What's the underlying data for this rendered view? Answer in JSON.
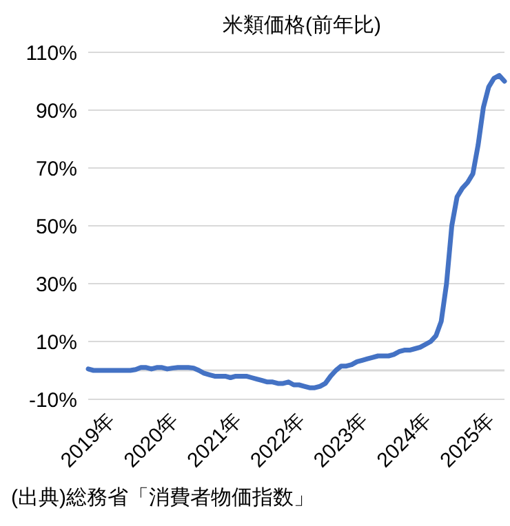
{
  "chart_data": {
    "type": "line",
    "title": "米類価格(前年比)",
    "annotations": [
      "(出典)総務省「消費者物価指数」"
    ],
    "categories": [
      "2019年",
      null,
      null,
      null,
      null,
      null,
      null,
      null,
      null,
      null,
      null,
      null,
      "2020年",
      null,
      null,
      null,
      null,
      null,
      null,
      null,
      null,
      null,
      null,
      null,
      "2021年",
      null,
      null,
      null,
      null,
      null,
      null,
      null,
      null,
      null,
      null,
      null,
      "2022年",
      null,
      null,
      null,
      null,
      null,
      null,
      null,
      null,
      null,
      null,
      null,
      "2023年",
      null,
      null,
      null,
      null,
      null,
      null,
      null,
      null,
      null,
      null,
      null,
      "2024年",
      null,
      null,
      null,
      null,
      null,
      null,
      null,
      null,
      null,
      null,
      null,
      "2025年",
      null,
      null,
      null,
      null,
      null,
      null,
      null
    ],
    "series": [
      {
        "color": "#4472c4",
        "values": [
          0.5,
          0,
          0,
          0,
          0,
          0,
          0,
          0,
          0,
          0.3,
          1,
          1,
          0.5,
          1,
          1,
          0.5,
          0.8,
          1,
          1,
          1,
          0.8,
          0,
          -1,
          -1.5,
          -2,
          -2,
          -2,
          -2.5,
          -2,
          -2,
          -2,
          -2.5,
          -3,
          -3.5,
          -4,
          -4,
          -4.5,
          -4.5,
          -4,
          -5,
          -5,
          -5.5,
          -6,
          -6,
          -5.5,
          -4.5,
          -2,
          0,
          1.5,
          1.5,
          2,
          3,
          3.5,
          4,
          4.5,
          5,
          5,
          5,
          5.5,
          6.5,
          7,
          7,
          7.5,
          8,
          9,
          10,
          12,
          17,
          30,
          50,
          60,
          63,
          65,
          68,
          78,
          91,
          98,
          101,
          102,
          100
        ]
      }
    ],
    "ylim": [
      -10,
      110
    ],
    "yticks": [
      {
        "value": -10,
        "label": "-10%"
      },
      {
        "value": 10,
        "label": "10%"
      },
      {
        "value": 30,
        "label": "30%"
      },
      {
        "value": 50,
        "label": "50%"
      },
      {
        "value": 70,
        "label": "70%"
      },
      {
        "value": 90,
        "label": "90%"
      },
      {
        "value": 110,
        "label": "110%"
      }
    ],
    "grid": "y",
    "legend": false,
    "marker": "none",
    "line_style": "solid",
    "ref_lines": [
      {
        "axis": "y",
        "value": 0,
        "label": null,
        "color": "#d9d9d9"
      }
    ]
  }
}
